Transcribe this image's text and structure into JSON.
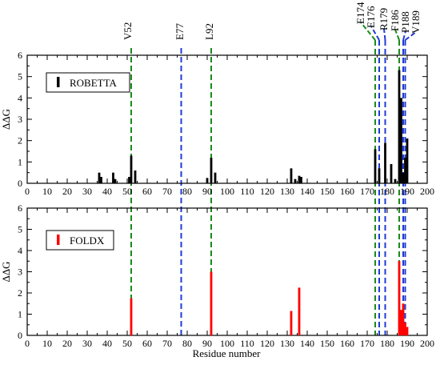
{
  "chart_data": [
    {
      "type": "bar",
      "panel": "top",
      "ylabel": "ΔΔG",
      "xlabel": "",
      "xlim": [
        0,
        200
      ],
      "ylim": [
        0,
        6
      ],
      "xticks": [
        0,
        10,
        20,
        30,
        40,
        50,
        60,
        70,
        80,
        90,
        100,
        110,
        120,
        130,
        140,
        150,
        160,
        170,
        180,
        190,
        200
      ],
      "yticks": [
        0,
        1,
        2,
        3,
        4,
        5,
        6
      ],
      "legend": {
        "label": "ROBETTA",
        "color": "#000000",
        "position": "top-left"
      },
      "series": [
        {
          "name": "ROBETTA",
          "color": "#000000",
          "points": [
            {
              "x": 36,
              "y": 0.5
            },
            {
              "x": 37,
              "y": 0.3
            },
            {
              "x": 43,
              "y": 0.5
            },
            {
              "x": 44,
              "y": 0.2
            },
            {
              "x": 51,
              "y": 0.3
            },
            {
              "x": 52,
              "y": 1.3
            },
            {
              "x": 54,
              "y": 0.6
            },
            {
              "x": 90,
              "y": 0.25
            },
            {
              "x": 92,
              "y": 1.2
            },
            {
              "x": 94,
              "y": 0.5
            },
            {
              "x": 132,
              "y": 0.7
            },
            {
              "x": 134,
              "y": 0.2
            },
            {
              "x": 136,
              "y": 0.35
            },
            {
              "x": 137,
              "y": 0.3
            },
            {
              "x": 174,
              "y": 1.6
            },
            {
              "x": 176,
              "y": 0.7
            },
            {
              "x": 179,
              "y": 1.9
            },
            {
              "x": 182,
              "y": 0.9
            },
            {
              "x": 184,
              "y": 0.2
            },
            {
              "x": 186,
              "y": 5.3
            },
            {
              "x": 187,
              "y": 4.0
            },
            {
              "x": 188,
              "y": 0.5
            },
            {
              "x": 189,
              "y": 1.2
            },
            {
              "x": 190,
              "y": 2.1
            }
          ]
        }
      ]
    },
    {
      "type": "bar",
      "panel": "bottom",
      "ylabel": "ΔΔG",
      "xlabel": "Residue number",
      "xlim": [
        0,
        200
      ],
      "ylim": [
        0,
        6
      ],
      "xticks": [
        0,
        10,
        20,
        30,
        40,
        50,
        60,
        70,
        80,
        90,
        100,
        110,
        120,
        130,
        140,
        150,
        160,
        170,
        180,
        190,
        200
      ],
      "yticks": [
        0,
        1,
        2,
        3,
        4,
        5,
        6
      ],
      "legend": {
        "label": "FOLDX",
        "color": "#ff0000",
        "position": "top-left"
      },
      "series": [
        {
          "name": "FOLDX",
          "color": "#ff0000",
          "points": [
            {
              "x": 52,
              "y": 1.75
            },
            {
              "x": 92,
              "y": 3.0
            },
            {
              "x": 132,
              "y": 1.15
            },
            {
              "x": 136,
              "y": 2.25
            },
            {
              "x": 186,
              "y": 3.5
            },
            {
              "x": 187,
              "y": 1.2
            },
            {
              "x": 188,
              "y": 1.5
            },
            {
              "x": 189,
              "y": 0.6
            },
            {
              "x": 190,
              "y": 0.4
            }
          ]
        }
      ]
    }
  ],
  "markers": [
    {
      "label": "V52",
      "x": 52,
      "color": "#1a8a1a"
    },
    {
      "label": "E77",
      "x": 77,
      "color": "#1f3bd6"
    },
    {
      "label": "L92",
      "x": 92,
      "color": "#1a8a1a"
    },
    {
      "label": "E174",
      "x": 174,
      "color": "#1a8a1a"
    },
    {
      "label": "E176",
      "x": 176,
      "color": "#1f3bd6"
    },
    {
      "label": "R179",
      "x": 179,
      "color": "#1f3bd6"
    },
    {
      "label": "F186",
      "x": 186,
      "color": "#1a8a1a"
    },
    {
      "label": "P188",
      "x": 188,
      "color": "#1f3bd6"
    },
    {
      "label": "V189",
      "x": 189,
      "color": "#1f3bd6"
    }
  ],
  "marker_lines_color_green": "#1a8a1a",
  "marker_lines_color_blue": "#1f3bd6"
}
